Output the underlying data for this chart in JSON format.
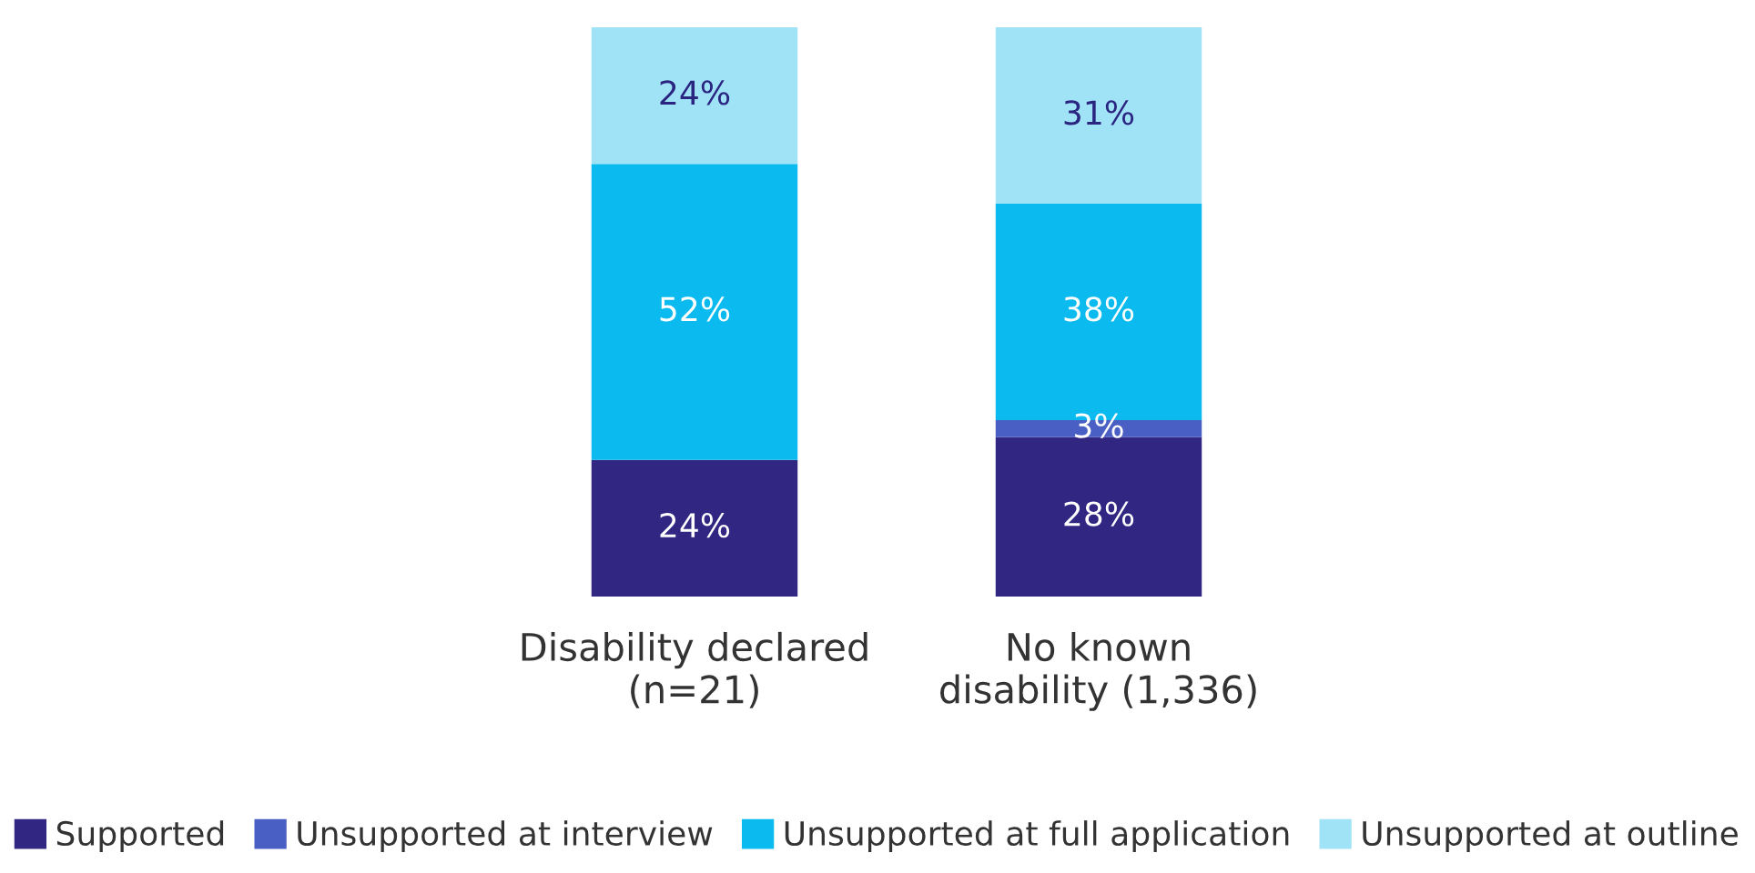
{
  "chart_data": {
    "type": "bar",
    "stacked": true,
    "categories": [
      "Disability declared\n(n=21)",
      "No known\ndisability (1,336)"
    ],
    "series": [
      {
        "name": "Supported",
        "color": "#312783",
        "values": [
          24,
          28
        ],
        "value_labels": [
          "24%",
          "28%"
        ]
      },
      {
        "name": "Unsupported at interview",
        "color": "#4a5fc4",
        "values": [
          0,
          3
        ],
        "value_labels": [
          null,
          "3%"
        ]
      },
      {
        "name": "Unsupported at full application",
        "color": "#0bbbef",
        "values": [
          52,
          38
        ],
        "value_labels": [
          "52%",
          "38%"
        ]
      },
      {
        "name": "Unsupported at outline",
        "color": "#a0e3f7",
        "values": [
          24,
          31
        ],
        "value_labels": [
          "24%",
          "31%"
        ]
      }
    ],
    "legend": "bottom",
    "grid": false
  }
}
